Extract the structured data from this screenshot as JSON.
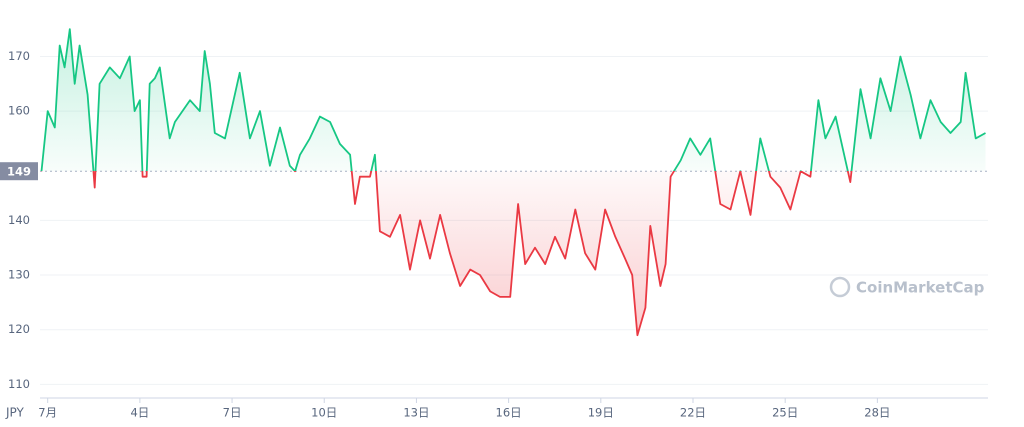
{
  "chart_data": {
    "type": "line",
    "currency": "JPY",
    "watermark": "CoinMarketCap",
    "baseline": 149,
    "up_color": "#16c784",
    "down_color": "#ea3943",
    "grid": true,
    "xlim": [
      0.75,
      31.6
    ],
    "ylim": [
      107.5,
      178.5
    ],
    "yticks": [
      110,
      120,
      130,
      140,
      160,
      170
    ],
    "xticks": [
      {
        "value": 1,
        "label": "7月"
      },
      {
        "value": 4,
        "label": "4日"
      },
      {
        "value": 7,
        "label": "7日"
      },
      {
        "value": 10,
        "label": "10日"
      },
      {
        "value": 13,
        "label": "13日"
      },
      {
        "value": 16,
        "label": "16日"
      },
      {
        "value": 19,
        "label": "19日"
      },
      {
        "value": 22,
        "label": "22日"
      },
      {
        "value": 25,
        "label": "25日"
      },
      {
        "value": 28,
        "label": "28日"
      }
    ],
    "x": [
      0.8,
      1.0,
      1.23,
      1.39,
      1.55,
      1.72,
      1.88,
      2.04,
      2.3,
      2.53,
      2.69,
      3.02,
      3.35,
      3.67,
      3.83,
      4.0,
      4.09,
      4.22,
      4.32,
      4.49,
      4.65,
      4.97,
      5.14,
      5.63,
      5.95,
      6.11,
      6.28,
      6.44,
      6.77,
      7.25,
      7.58,
      7.91,
      8.23,
      8.56,
      8.88,
      9.05,
      9.21,
      9.53,
      9.86,
      10.19,
      10.51,
      10.84,
      11.0,
      11.16,
      11.49,
      11.65,
      11.81,
      12.14,
      12.47,
      12.79,
      13.12,
      13.44,
      13.77,
      14.09,
      14.42,
      14.75,
      15.07,
      15.4,
      15.72,
      16.05,
      16.31,
      16.54,
      16.86,
      17.19,
      17.51,
      17.84,
      18.17,
      18.49,
      18.82,
      19.14,
      19.47,
      19.79,
      20.02,
      20.19,
      20.45,
      20.61,
      20.94,
      21.11,
      21.27,
      21.6,
      21.91,
      22.24,
      22.56,
      22.89,
      23.22,
      23.54,
      23.87,
      24.19,
      24.52,
      24.84,
      25.17,
      25.5,
      25.82,
      26.08,
      26.31,
      26.64,
      26.96,
      27.12,
      27.45,
      27.78,
      28.1,
      28.43,
      28.75,
      29.08,
      29.4,
      29.73,
      30.06,
      30.38,
      30.71,
      30.87,
      31.2,
      31.52
    ],
    "values": [
      149,
      160,
      157,
      172,
      168,
      175,
      165,
      172,
      163,
      146,
      165,
      168,
      166,
      170,
      160,
      162,
      148,
      148,
      165,
      166,
      168,
      155,
      158,
      162,
      160,
      171,
      165,
      156,
      155,
      167,
      155,
      160,
      150,
      157,
      150,
      149,
      152,
      155,
      159,
      158,
      154,
      152,
      143,
      148,
      148,
      152,
      138,
      137,
      141,
      131,
      140,
      133,
      141,
      134,
      128,
      131,
      130,
      127,
      126,
      126,
      143,
      132,
      135,
      132,
      137,
      133,
      142,
      134,
      131,
      142,
      137,
      133,
      130,
      119,
      124,
      139,
      128,
      132,
      148,
      151,
      155,
      152,
      155,
      143,
      142,
      149,
      141,
      155,
      148,
      146,
      142,
      149,
      148,
      162,
      155,
      159,
      151,
      147,
      164,
      155,
      166,
      160,
      170,
      163,
      155,
      162,
      158,
      156,
      158,
      167,
      155,
      156
    ]
  }
}
